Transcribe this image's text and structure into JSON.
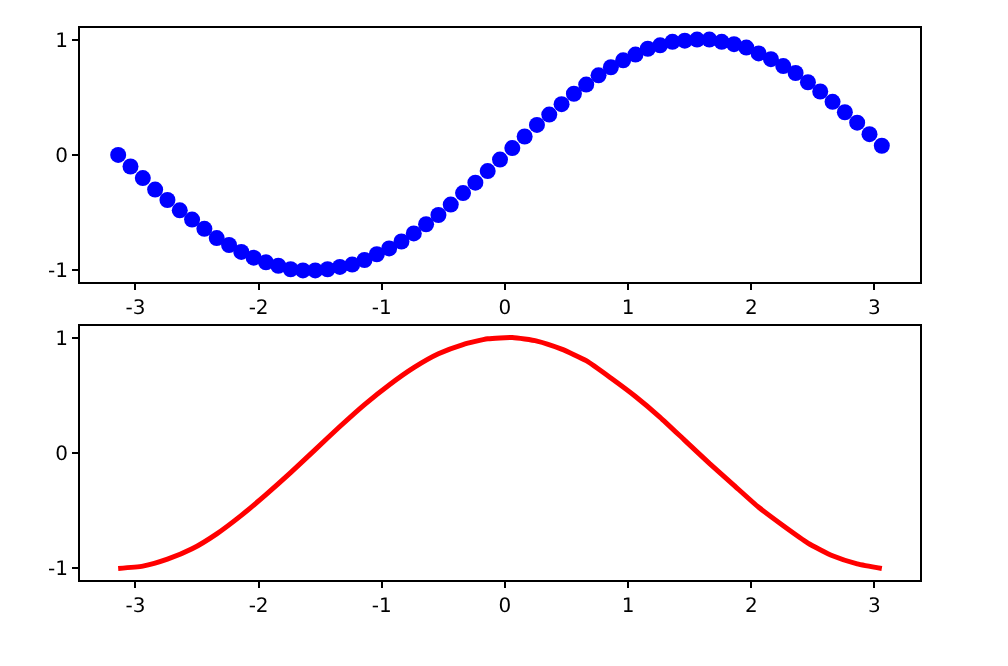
{
  "chart_data": [
    {
      "type": "scatter",
      "marker": "circle",
      "xlim": [
        -3.45,
        3.37
      ],
      "ylim": [
        -1.1,
        1.1
      ],
      "xticks": [
        -3,
        -2,
        -1,
        0,
        1,
        2,
        3
      ],
      "yticks": [
        -1,
        0,
        1
      ],
      "x": [
        -3.14,
        -3.04,
        -2.94,
        -2.84,
        -2.74,
        -2.64,
        -2.54,
        -2.44,
        -2.34,
        -2.24,
        -2.14,
        -2.04,
        -1.94,
        -1.84,
        -1.74,
        -1.64,
        -1.54,
        -1.44,
        -1.34,
        -1.24,
        -1.14,
        -1.04,
        -0.94,
        -0.84,
        -0.74,
        -0.64,
        -0.54,
        -0.44,
        -0.34,
        -0.24,
        -0.14,
        -0.04,
        0.06,
        0.16,
        0.26,
        0.36,
        0.46,
        0.56,
        0.66,
        0.76,
        0.86,
        0.96,
        1.06,
        1.16,
        1.26,
        1.36,
        1.46,
        1.56,
        1.66,
        1.76,
        1.86,
        1.96,
        2.06,
        2.16,
        2.26,
        2.36,
        2.46,
        2.56,
        2.66,
        2.76,
        2.86,
        2.96,
        3.06
      ],
      "series": [
        {
          "color": "#0000ff",
          "values": [
            0,
            -0.1,
            -0.2,
            -0.3,
            -0.39,
            -0.48,
            -0.56,
            -0.64,
            -0.72,
            -0.78,
            -0.84,
            -0.89,
            -0.93,
            -0.96,
            -0.99,
            -1.0,
            -1.0,
            -0.99,
            -0.97,
            -0.95,
            -0.91,
            -0.86,
            -0.81,
            -0.75,
            -0.68,
            -0.6,
            -0.52,
            -0.43,
            -0.33,
            -0.24,
            -0.14,
            -0.04,
            0.06,
            0.16,
            0.26,
            0.35,
            0.44,
            0.53,
            0.61,
            0.69,
            0.76,
            0.82,
            0.87,
            0.92,
            0.95,
            0.98,
            0.99,
            1.0,
            1.0,
            0.98,
            0.96,
            0.93,
            0.88,
            0.83,
            0.77,
            0.71,
            0.63,
            0.55,
            0.46,
            0.37,
            0.28,
            0.18,
            0.08
          ]
        }
      ]
    },
    {
      "type": "line",
      "xlim": [
        -3.45,
        3.37
      ],
      "ylim": [
        -1.1,
        1.1
      ],
      "xticks": [
        -3,
        -2,
        -1,
        0,
        1,
        2,
        3
      ],
      "yticks": [
        -1,
        0,
        1
      ],
      "x": [
        -3.14,
        -2.94,
        -2.74,
        -2.54,
        -2.34,
        -2.14,
        -1.94,
        -1.74,
        -1.54,
        -1.34,
        -1.14,
        -0.94,
        -0.74,
        -0.54,
        -0.34,
        -0.14,
        0.06,
        0.26,
        0.46,
        0.66,
        0.86,
        1.06,
        1.26,
        1.46,
        1.66,
        1.86,
        2.06,
        2.26,
        2.46,
        2.66,
        2.86,
        3.06
      ],
      "series": [
        {
          "color": "#ff0000",
          "values": [
            -1.0,
            -0.98,
            -0.92,
            -0.83,
            -0.7,
            -0.54,
            -0.36,
            -0.17,
            0.03,
            0.23,
            0.42,
            0.59,
            0.74,
            0.86,
            0.94,
            0.99,
            1.0,
            0.97,
            0.9,
            0.8,
            0.65,
            0.49,
            0.31,
            0.11,
            -0.09,
            -0.28,
            -0.47,
            -0.63,
            -0.78,
            -0.89,
            -0.96,
            -1.0
          ]
        }
      ]
    }
  ]
}
